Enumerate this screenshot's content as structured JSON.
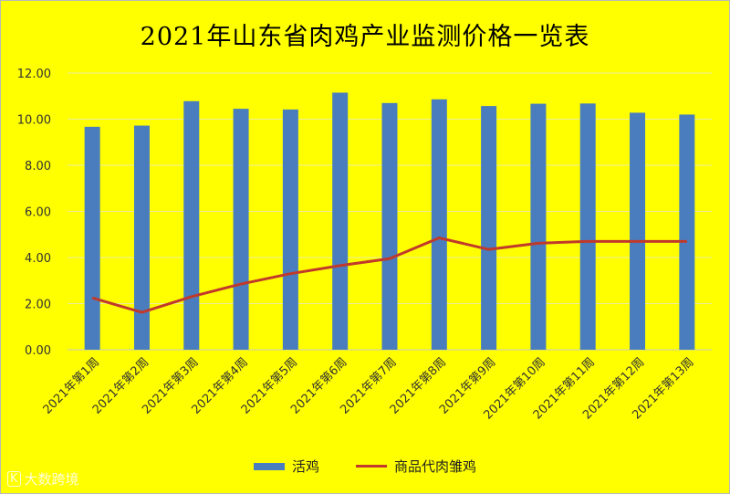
{
  "chart_data": {
    "type": "bar",
    "title": "2021年山东省肉鸡产业监测价格一览表",
    "categories": [
      "2021年第1周",
      "2021年第2周",
      "2021年第3周",
      "2021年第4周",
      "2021年第5周",
      "2021年第6周",
      "2021年第7周",
      "2021年第8周",
      "2021年第9周",
      "2021年第10周",
      "2021年第11周",
      "2021年第12周",
      "2021年第13周"
    ],
    "series": [
      {
        "name": "活鸡",
        "type": "bar",
        "color": "#4a7dbd",
        "values": [
          9.67,
          9.72,
          10.78,
          10.45,
          10.42,
          11.15,
          10.7,
          10.86,
          10.57,
          10.67,
          10.68,
          10.28,
          10.2
        ]
      },
      {
        "name": "商品代肉雏鸡",
        "type": "line",
        "color": "#c0392b",
        "values": [
          2.25,
          1.62,
          2.3,
          2.85,
          3.3,
          3.65,
          3.95,
          4.85,
          4.35,
          4.62,
          4.7,
          4.7,
          4.7
        ]
      }
    ],
    "ylim": [
      0,
      12
    ],
    "yticks": [
      "0.00",
      "2.00",
      "4.00",
      "6.00",
      "8.00",
      "10.00",
      "12.00"
    ],
    "grid": true,
    "legend_position": "bottom"
  },
  "watermark": {
    "icon": "logo-icon",
    "text": "大数跨境"
  }
}
